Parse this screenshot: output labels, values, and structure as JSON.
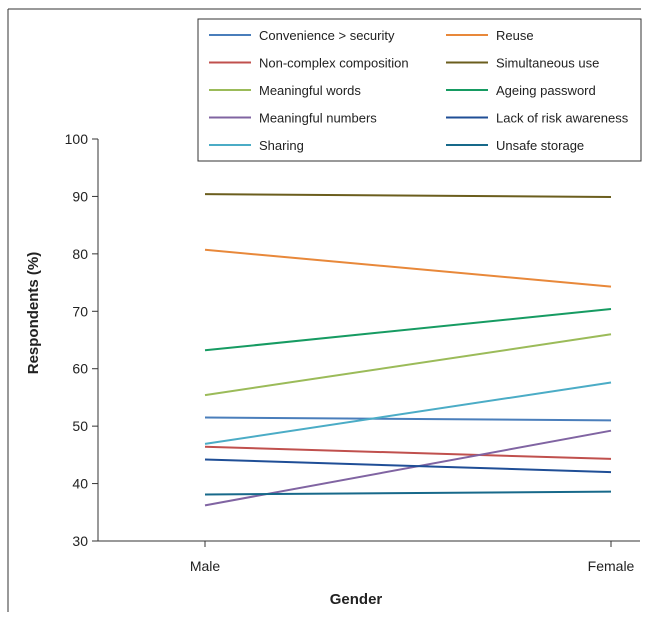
{
  "chart_data": {
    "type": "line",
    "title": "",
    "xlabel": "Gender",
    "ylabel": "Respondents (%)",
    "categories": [
      "Male",
      "Female"
    ],
    "ylim": [
      30,
      100
    ],
    "yticks": [
      30,
      40,
      50,
      60,
      70,
      80,
      90,
      100
    ],
    "grid": false,
    "legend": "top",
    "series": [
      {
        "name": "Convenience > security",
        "color": "#4a7ebb",
        "values": [
          51.5,
          51.0
        ]
      },
      {
        "name": "Reuse",
        "color": "#e8883a",
        "values": [
          80.7,
          74.3
        ]
      },
      {
        "name": "Non-complex composition",
        "color": "#c0504d",
        "values": [
          46.4,
          44.3
        ]
      },
      {
        "name": "Simultaneous use",
        "color": "#6b5e1e",
        "values": [
          90.4,
          89.9
        ]
      },
      {
        "name": "Meaningful words",
        "color": "#9bbb59",
        "values": [
          55.4,
          66.0
        ]
      },
      {
        "name": "Ageing password",
        "color": "#169b62",
        "values": [
          63.2,
          70.4
        ]
      },
      {
        "name": "Meaningful numbers",
        "color": "#8064a2",
        "values": [
          36.2,
          49.2
        ]
      },
      {
        "name": "Lack of risk awareness",
        "color": "#1f4e96",
        "values": [
          44.2,
          42.0
        ]
      },
      {
        "name": "Sharing",
        "color": "#4bacc6",
        "values": [
          46.9,
          57.6
        ]
      },
      {
        "name": "Unsafe storage",
        "color": "#17698a",
        "values": [
          38.1,
          38.6
        ]
      }
    ]
  }
}
